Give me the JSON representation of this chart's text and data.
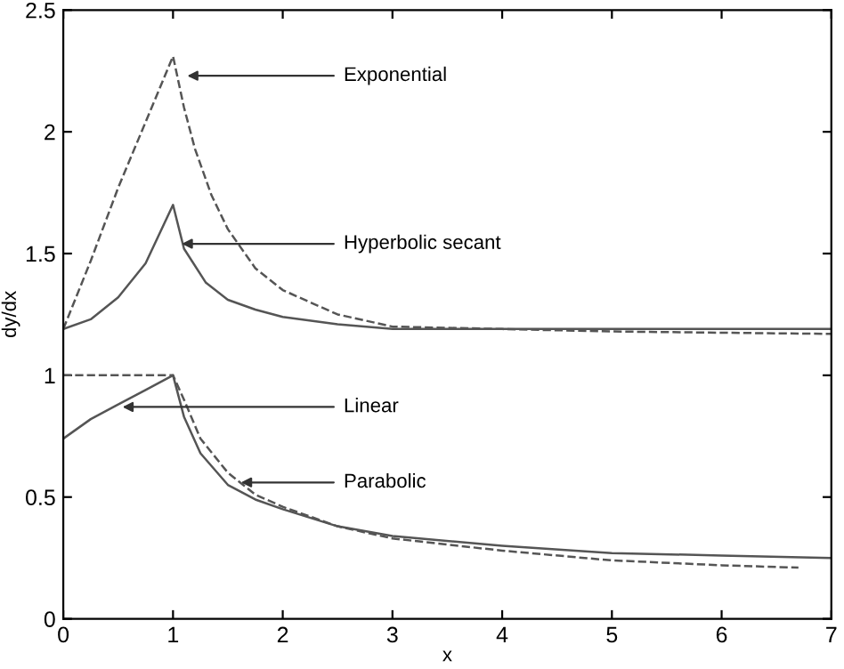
{
  "chart_data": {
    "type": "line",
    "xlabel": "x",
    "ylabel": "dy/dx",
    "xlim": [
      0,
      7
    ],
    "ylim": [
      0,
      2.5
    ],
    "xticks": [
      0,
      1,
      2,
      3,
      4,
      5,
      6,
      7
    ],
    "yticks": [
      0,
      0.5,
      1,
      1.5,
      2,
      2.5
    ],
    "grid": false,
    "legend": false,
    "marker": "none",
    "series": [
      {
        "color": "#555555",
        "line_style": "dashed",
        "x": [
          0,
          0.25,
          0.5,
          0.75,
          1,
          1.1,
          1.2,
          1.35,
          1.5,
          1.75,
          2,
          2.5,
          3,
          4,
          5,
          6,
          7
        ],
        "values": [
          1.19,
          1.47,
          1.77,
          2.04,
          2.31,
          2.1,
          1.93,
          1.74,
          1.6,
          1.44,
          1.35,
          1.25,
          1.2,
          1.19,
          1.18,
          1.175,
          1.17
        ]
      },
      {
        "color": "#555555",
        "line_style": "solid",
        "x": [
          0,
          0.25,
          0.5,
          0.75,
          1,
          1.1,
          1.3,
          1.5,
          1.75,
          2,
          2.5,
          3,
          4,
          5,
          6,
          7
        ],
        "values": [
          1.19,
          1.23,
          1.32,
          1.46,
          1.7,
          1.52,
          1.38,
          1.31,
          1.27,
          1.24,
          1.21,
          1.19,
          1.19,
          1.19,
          1.19,
          1.19
        ]
      },
      {
        "color": "#555555",
        "line_style": "solid",
        "x": [
          0,
          0.25,
          0.5,
          0.75,
          1,
          1.1,
          1.25,
          1.5,
          1.75,
          2,
          2.5,
          3,
          4,
          5,
          6,
          7
        ],
        "values": [
          0.74,
          0.82,
          0.88,
          0.94,
          1.0,
          0.83,
          0.68,
          0.55,
          0.49,
          0.45,
          0.38,
          0.34,
          0.3,
          0.27,
          0.26,
          0.25
        ]
      },
      {
        "color": "#555555",
        "line_style": "dashed",
        "x": [
          0,
          0.5,
          1,
          1.1,
          1.25,
          1.5,
          1.75,
          2,
          2.5,
          3,
          4,
          5,
          6,
          6.7
        ],
        "values": [
          1.0,
          1.0,
          1.0,
          0.9,
          0.74,
          0.6,
          0.51,
          0.46,
          0.38,
          0.33,
          0.28,
          0.24,
          0.22,
          0.21
        ]
      }
    ],
    "annotations": [
      {
        "text": "Exponential",
        "x": 1.13,
        "y": 2.23
      },
      {
        "text": "Hyperbolic secant",
        "x": 1.08,
        "y": 1.54
      },
      {
        "text": "Linear",
        "x": 0.54,
        "y": 0.87
      },
      {
        "text": "Parabolic",
        "x": 1.62,
        "y": 0.56
      }
    ]
  }
}
